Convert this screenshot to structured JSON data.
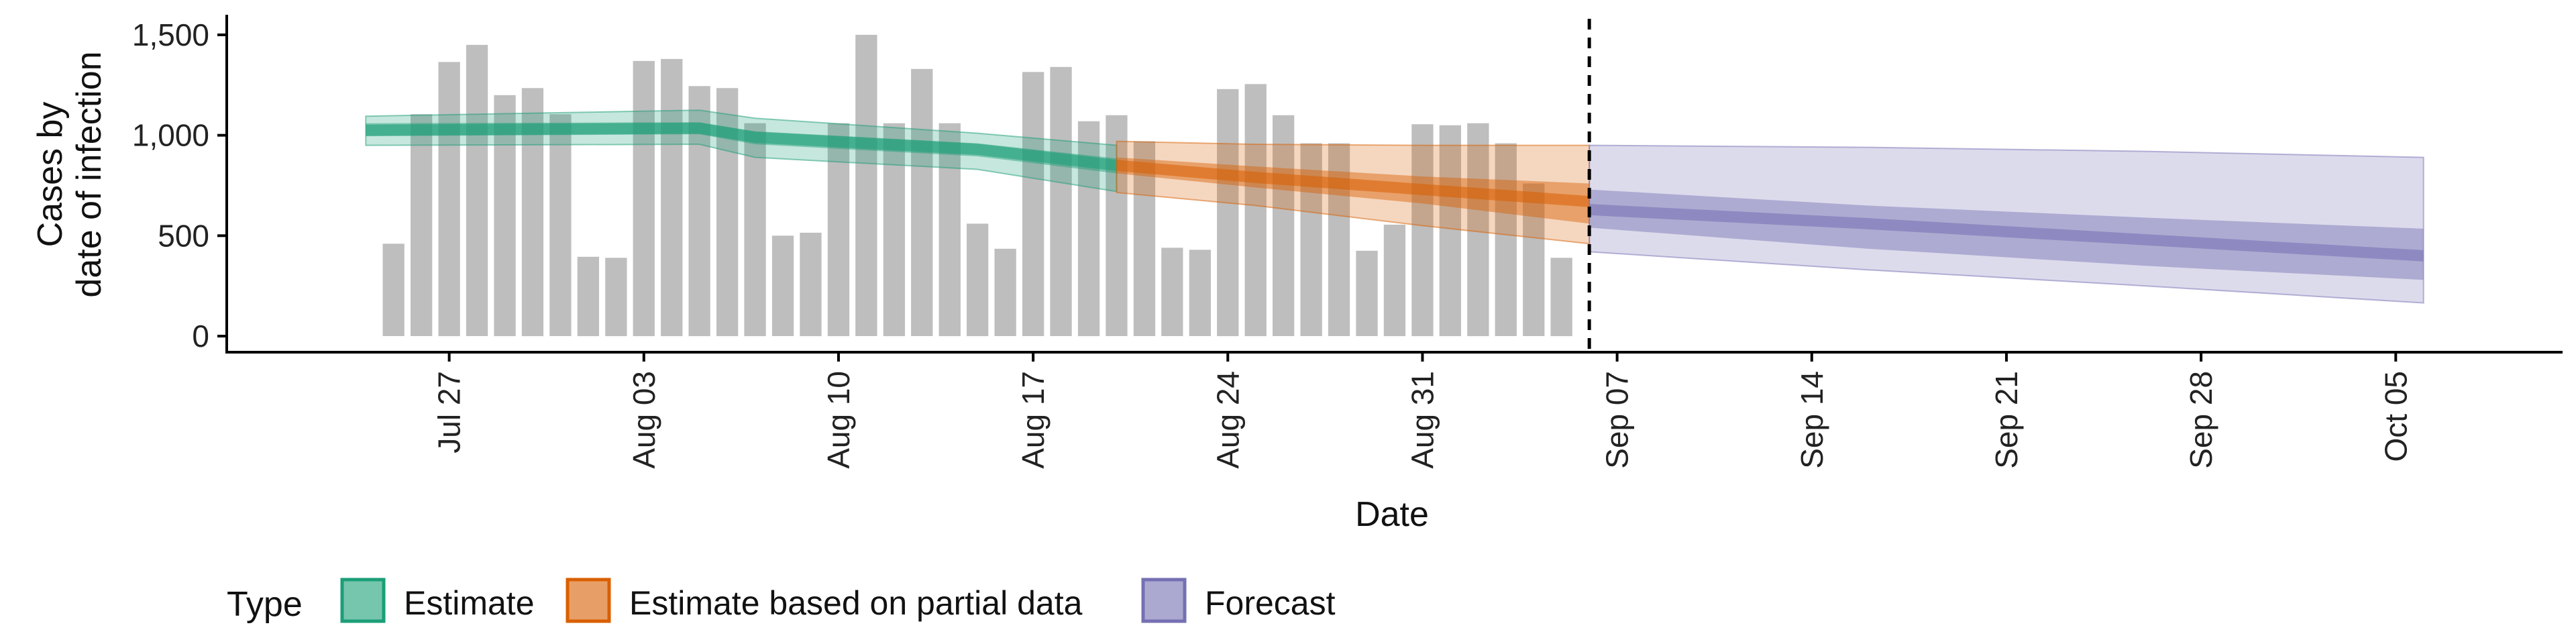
{
  "chart_data": {
    "type": "bar",
    "xlabel": "Date",
    "ylabel_lines": [
      "Cases by",
      "date of infection"
    ],
    "yticks": [
      0,
      500,
      1000,
      1500
    ],
    "ytick_labels": [
      "0",
      "500",
      "1,000",
      "1,500"
    ],
    "ylim": [
      -80,
      1600
    ],
    "xlim": [
      "2021-07-19",
      "2021-10-11"
    ],
    "xticks": [
      "2021-07-27",
      "2021-08-03",
      "2021-08-10",
      "2021-08-17",
      "2021-08-24",
      "2021-08-31",
      "2021-09-07",
      "2021-09-14",
      "2021-09-21",
      "2021-09-28",
      "2021-10-05"
    ],
    "xtick_labels": [
      "Jul 27",
      "Aug 03",
      "Aug 10",
      "Aug 17",
      "Aug 24",
      "Aug 31",
      "Sep 07",
      "Sep 14",
      "Sep 21",
      "Sep 28",
      "Oct 05"
    ],
    "forecast_start": "2021-09-06",
    "grid": false,
    "bars": {
      "start_date": "2021-07-25",
      "values": [
        460,
        1105,
        1365,
        1450,
        1200,
        1235,
        1105,
        395,
        390,
        1370,
        1380,
        1245,
        1235,
        1060,
        500,
        515,
        1060,
        1500,
        1060,
        1330,
        1060,
        560,
        435,
        1315,
        1340,
        1070,
        1100,
        970,
        440,
        430,
        1230,
        1255,
        1100,
        960,
        960,
        425,
        555,
        1055,
        1050,
        1060,
        960,
        760,
        390
      ]
    },
    "series": [
      {
        "name": "Estimate",
        "color": "#1b9e77",
        "dates": [
          "2021-07-24",
          "2021-08-05",
          "2021-08-07",
          "2021-08-15",
          "2021-08-20"
        ],
        "median": [
          1025,
          1035,
          990,
          930,
          850
        ],
        "inner": [
          [
            995,
            1060
          ],
          [
            1005,
            1065
          ],
          [
            955,
            1020
          ],
          [
            895,
            960
          ],
          [
            810,
            885
          ]
        ],
        "outer": [
          [
            950,
            1095
          ],
          [
            955,
            1125
          ],
          [
            890,
            1085
          ],
          [
            830,
            1010
          ],
          [
            720,
            950
          ]
        ]
      },
      {
        "name": "Estimate based on partial data",
        "color": "#d95f02",
        "dates": [
          "2021-08-20",
          "2021-08-25",
          "2021-08-31",
          "2021-09-06"
        ],
        "median": [
          850,
          790,
          730,
          670
        ],
        "inner": [
          [
            810,
            890
          ],
          [
            740,
            845
          ],
          [
            660,
            795
          ],
          [
            560,
            760
          ]
        ],
        "outer": [
          [
            715,
            970
          ],
          [
            650,
            955
          ],
          [
            550,
            950
          ],
          [
            460,
            950
          ]
        ]
      },
      {
        "name": "Forecast",
        "color": "#7570b3",
        "dates": [
          "2021-09-06",
          "2021-09-16",
          "2021-09-26",
          "2021-10-06"
        ],
        "median": [
          630,
          560,
          480,
          400
        ],
        "inner": [
          [
            540,
            730
          ],
          [
            435,
            650
          ],
          [
            350,
            590
          ],
          [
            280,
            535
          ]
        ],
        "outer": [
          [
            420,
            950
          ],
          [
            330,
            940
          ],
          [
            250,
            920
          ],
          [
            165,
            890
          ]
        ]
      }
    ],
    "legend": {
      "title": "Type",
      "position": "bottom-left",
      "items": [
        "Estimate",
        "Estimate based on partial data",
        "Forecast"
      ]
    }
  }
}
